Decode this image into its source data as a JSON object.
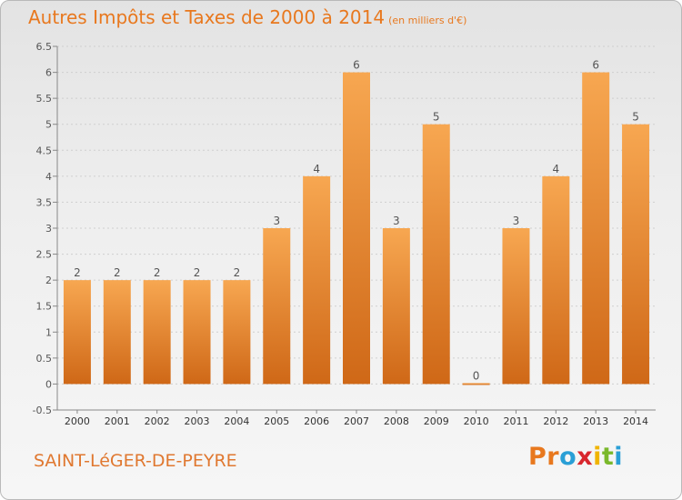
{
  "header": {
    "title": "Autres Impôts et Taxes de 2000 à 2014",
    "unit_note": "(en milliers d'€)"
  },
  "commune": "SAINT-LéGER-DE-PEYRE",
  "logo": {
    "letters": [
      "P",
      "r",
      "o",
      "x",
      "i",
      "t",
      "i"
    ],
    "colors": [
      "#e8781e",
      "#e8781e",
      "#2a9fd6",
      "#d8262d",
      "#f0b400",
      "#7ab82b",
      "#2a9fd6"
    ]
  },
  "chart_data": {
    "type": "bar",
    "title": "Autres Impôts et Taxes de 2000 à 2014",
    "categories": [
      "2000",
      "2001",
      "2002",
      "2003",
      "2004",
      "2005",
      "2006",
      "2007",
      "2008",
      "2009",
      "2010",
      "2011",
      "2012",
      "2013",
      "2014"
    ],
    "values": [
      2,
      2,
      2,
      2,
      2,
      3,
      4,
      6,
      3,
      5,
      0,
      3,
      4,
      6,
      5
    ],
    "data_labels": [
      "2",
      "2",
      "2",
      "2",
      "2",
      "3",
      "4",
      "6",
      "3",
      "5",
      "0",
      "3",
      "4",
      "6",
      "5"
    ],
    "y_ticks": [
      "-0.5",
      "0",
      "0.5",
      "1",
      "1.5",
      "2",
      "2.5",
      "3",
      "3.5",
      "4",
      "4.5",
      "5",
      "5.5",
      "6",
      "6.5"
    ],
    "ylim": [
      -0.5,
      6.5
    ],
    "grid": true,
    "bar_color_top": "#f7a751",
    "bar_color_bottom": "#cf6817"
  }
}
